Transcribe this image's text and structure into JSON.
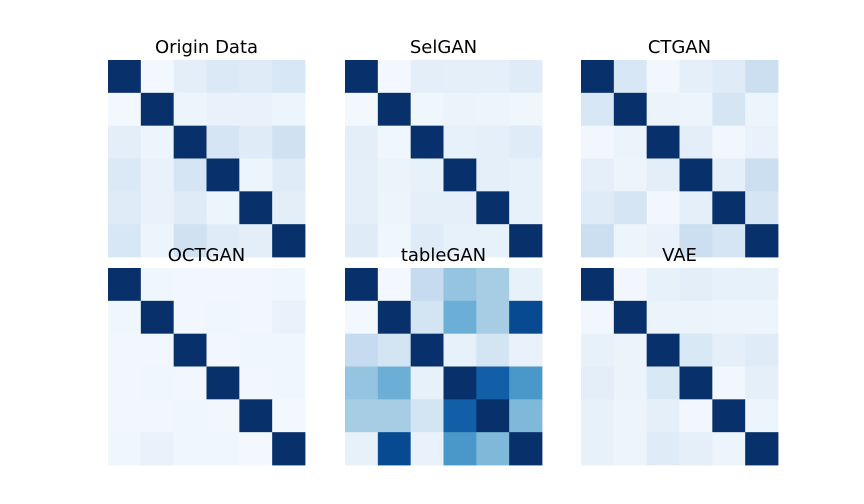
{
  "chart_data": [
    {
      "type": "heatmap",
      "title": "Origin Data",
      "colormap": "Blues",
      "clim": [
        0,
        1
      ],
      "values": [
        [
          1.0,
          0.02,
          0.1,
          0.14,
          0.12,
          0.16
        ],
        [
          0.02,
          1.0,
          0.05,
          0.07,
          0.07,
          0.05
        ],
        [
          0.1,
          0.05,
          1.0,
          0.17,
          0.12,
          0.2
        ],
        [
          0.14,
          0.07,
          0.17,
          1.0,
          0.05,
          0.12
        ],
        [
          0.12,
          0.07,
          0.12,
          0.05,
          1.0,
          0.1
        ],
        [
          0.16,
          0.05,
          0.2,
          0.12,
          0.1,
          1.0
        ]
      ]
    },
    {
      "type": "heatmap",
      "title": "SelGAN",
      "colormap": "Blues",
      "clim": [
        0,
        1
      ],
      "values": [
        [
          1.0,
          0.02,
          0.1,
          0.09,
          0.09,
          0.12
        ],
        [
          0.02,
          1.0,
          0.04,
          0.06,
          0.05,
          0.04
        ],
        [
          0.1,
          0.04,
          1.0,
          0.08,
          0.09,
          0.12
        ],
        [
          0.09,
          0.06,
          0.08,
          1.0,
          0.09,
          0.08
        ],
        [
          0.09,
          0.05,
          0.09,
          0.09,
          1.0,
          0.08
        ],
        [
          0.12,
          0.04,
          0.12,
          0.08,
          0.08,
          1.0
        ]
      ]
    },
    {
      "type": "heatmap",
      "title": "CTGAN",
      "colormap": "Blues",
      "clim": [
        0,
        1
      ],
      "values": [
        [
          1.0,
          0.16,
          0.03,
          0.09,
          0.12,
          0.22
        ],
        [
          0.16,
          1.0,
          0.06,
          0.05,
          0.17,
          0.05
        ],
        [
          0.03,
          0.06,
          1.0,
          0.1,
          0.03,
          0.07
        ],
        [
          0.09,
          0.05,
          0.1,
          1.0,
          0.09,
          0.22
        ],
        [
          0.12,
          0.17,
          0.03,
          0.09,
          1.0,
          0.17
        ],
        [
          0.22,
          0.05,
          0.07,
          0.22,
          0.17,
          1.0
        ]
      ]
    },
    {
      "type": "heatmap",
      "title": "OCTGAN",
      "colormap": "Blues",
      "clim": [
        0,
        1
      ],
      "values": [
        [
          1.0,
          0.04,
          0.03,
          0.03,
          0.03,
          0.04
        ],
        [
          0.04,
          1.0,
          0.03,
          0.04,
          0.03,
          0.07
        ],
        [
          0.03,
          0.03,
          1.0,
          0.03,
          0.04,
          0.04
        ],
        [
          0.03,
          0.04,
          0.03,
          1.0,
          0.03,
          0.04
        ],
        [
          0.03,
          0.03,
          0.04,
          0.03,
          1.0,
          0.02
        ],
        [
          0.04,
          0.07,
          0.04,
          0.04,
          0.02,
          1.0
        ]
      ]
    },
    {
      "type": "heatmap",
      "title": "tableGAN",
      "colormap": "Blues",
      "clim": [
        0,
        1
      ],
      "values": [
        [
          1.0,
          0.02,
          0.25,
          0.4,
          0.35,
          0.08
        ],
        [
          0.02,
          1.0,
          0.18,
          0.5,
          0.35,
          0.9
        ],
        [
          0.25,
          0.18,
          1.0,
          0.08,
          0.18,
          0.07
        ],
        [
          0.4,
          0.5,
          0.08,
          1.0,
          0.82,
          0.6
        ],
        [
          0.35,
          0.35,
          0.18,
          0.82,
          1.0,
          0.45
        ],
        [
          0.08,
          0.9,
          0.07,
          0.6,
          0.45,
          1.0
        ]
      ]
    },
    {
      "type": "heatmap",
      "title": "VAE",
      "colormap": "Blues",
      "clim": [
        0,
        1
      ],
      "values": [
        [
          1.0,
          0.03,
          0.08,
          0.1,
          0.08,
          0.08
        ],
        [
          0.03,
          1.0,
          0.06,
          0.06,
          0.05,
          0.05
        ],
        [
          0.08,
          0.06,
          1.0,
          0.15,
          0.09,
          0.12
        ],
        [
          0.1,
          0.06,
          0.15,
          1.0,
          0.03,
          0.09
        ],
        [
          0.08,
          0.05,
          0.09,
          0.03,
          1.0,
          0.05
        ],
        [
          0.08,
          0.05,
          0.12,
          0.09,
          0.05,
          1.0
        ]
      ]
    }
  ]
}
